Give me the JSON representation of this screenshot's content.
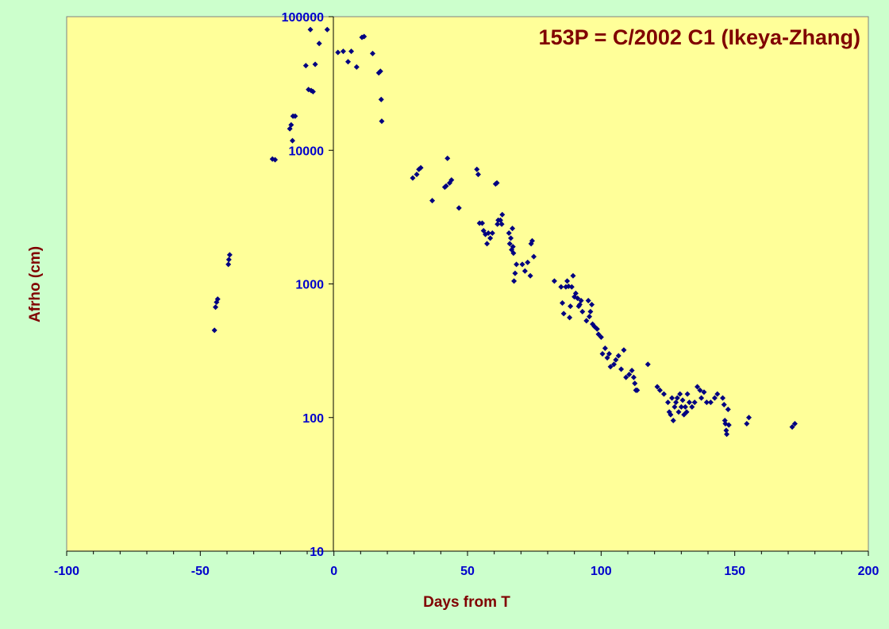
{
  "chart_data": {
    "type": "scatter",
    "title": "153P = C/2002 C1 (Ikeya-Zhang)",
    "xlabel": "Days from T",
    "ylabel": "Afrho (cm)",
    "xlim": [
      -100,
      200
    ],
    "ylim": [
      10,
      100000
    ],
    "yscale": "log",
    "x_ticks": [
      "-100",
      "-50",
      "0",
      "50",
      "100",
      "150",
      "200"
    ],
    "y_ticks": [
      "10",
      "100",
      "1000",
      "10000",
      "100000"
    ],
    "grid": false,
    "legend": "none",
    "colors": {
      "plot_bg": "#ffff99",
      "page_bg": "#ccffcc",
      "marker": "#000080",
      "tick_text": "#0000cc",
      "title_text": "#800000"
    },
    "series": [
      {
        "points": [
          [
            -44.7,
            450
          ],
          [
            -44.3,
            670
          ],
          [
            -43.9,
            730
          ],
          [
            -43.5,
            770
          ],
          [
            -39.5,
            1400
          ],
          [
            -39.3,
            1520
          ],
          [
            -39,
            1650
          ],
          [
            -23,
            8600
          ],
          [
            -22,
            8500
          ],
          [
            -16.5,
            14500
          ],
          [
            -16,
            15500
          ],
          [
            -15.5,
            11800
          ],
          [
            -15.3,
            18000
          ],
          [
            -14.5,
            18000
          ],
          [
            -10.5,
            43000
          ],
          [
            -9.5,
            28500
          ],
          [
            -8.8,
            80000
          ],
          [
            -8.5,
            28000
          ],
          [
            -7.8,
            27500
          ],
          [
            -7,
            44000
          ],
          [
            -5.5,
            63000
          ],
          [
            -2.5,
            80000
          ],
          [
            1.5,
            54000
          ],
          [
            3.5,
            55000
          ],
          [
            5.3,
            46000
          ],
          [
            6.5,
            55000
          ],
          [
            8.5,
            42000
          ],
          [
            10.5,
            70000
          ],
          [
            11.3,
            71000
          ],
          [
            14.5,
            53000
          ],
          [
            16.8,
            38000
          ],
          [
            17.4,
            39000
          ],
          [
            17.7,
            24000
          ],
          [
            17.9,
            16500
          ],
          [
            29.5,
            6200
          ],
          [
            31,
            6600
          ],
          [
            31.8,
            7200
          ],
          [
            32.5,
            7400
          ],
          [
            36.8,
            4200
          ],
          [
            41.5,
            5300
          ],
          [
            42,
            5400
          ],
          [
            42.5,
            8700
          ],
          [
            43.3,
            5700
          ],
          [
            44,
            6000
          ],
          [
            46.8,
            3700
          ],
          [
            53.5,
            7200
          ],
          [
            54,
            6600
          ],
          [
            54.5,
            2850
          ],
          [
            55.5,
            2850
          ],
          [
            56,
            2500
          ],
          [
            56.7,
            2350
          ],
          [
            57.3,
            2000
          ],
          [
            57.8,
            2400
          ],
          [
            58.5,
            2200
          ],
          [
            59.3,
            2400
          ],
          [
            60.5,
            5600
          ],
          [
            61,
            5700
          ],
          [
            61.2,
            2800
          ],
          [
            61.5,
            3000
          ],
          [
            62.3,
            3000
          ],
          [
            62.8,
            2800
          ],
          [
            63,
            3300
          ],
          [
            65.5,
            2400
          ],
          [
            65.8,
            2000
          ],
          [
            66.2,
            2200
          ],
          [
            66.5,
            1800
          ],
          [
            66.8,
            2600
          ],
          [
            67,
            1900
          ],
          [
            67.2,
            1700
          ],
          [
            67.4,
            1050
          ],
          [
            67.8,
            1200
          ],
          [
            68.3,
            1400
          ],
          [
            70.5,
            1400
          ],
          [
            71.5,
            1250
          ],
          [
            72.5,
            1450
          ],
          [
            73.5,
            1150
          ],
          [
            73.8,
            2000
          ],
          [
            74.2,
            2100
          ],
          [
            74.8,
            1600
          ],
          [
            82.5,
            1050
          ],
          [
            85,
            950
          ],
          [
            85.5,
            720
          ],
          [
            86,
            600
          ],
          [
            86.8,
            950
          ],
          [
            87.3,
            1050
          ],
          [
            87.8,
            960
          ],
          [
            88.2,
            560
          ],
          [
            88.5,
            680
          ],
          [
            89,
            950
          ],
          [
            89.5,
            1150
          ],
          [
            90,
            800
          ],
          [
            90.5,
            850
          ],
          [
            91.2,
            780
          ],
          [
            91.6,
            680
          ],
          [
            92,
            700
          ],
          [
            92.5,
            750
          ],
          [
            93,
            620
          ],
          [
            94.5,
            530
          ],
          [
            95.2,
            750
          ],
          [
            95.6,
            570
          ],
          [
            96,
            620
          ],
          [
            96.5,
            700
          ],
          [
            96.8,
            500
          ],
          [
            97.5,
            480
          ],
          [
            98.5,
            460
          ],
          [
            99,
            420
          ],
          [
            100,
            400
          ],
          [
            100.5,
            300
          ],
          [
            101.5,
            330
          ],
          [
            102.3,
            280
          ],
          [
            103,
            300
          ],
          [
            103.5,
            240
          ],
          [
            104.8,
            250
          ],
          [
            105.5,
            270
          ],
          [
            106.5,
            290
          ],
          [
            107.5,
            230
          ],
          [
            108.5,
            320
          ],
          [
            109.3,
            200
          ],
          [
            110.5,
            210
          ],
          [
            111.5,
            225
          ],
          [
            112.2,
            200
          ],
          [
            112.6,
            180
          ],
          [
            113,
            160
          ],
          [
            113.5,
            160
          ],
          [
            117.5,
            250
          ],
          [
            121,
            170
          ],
          [
            122,
            160
          ],
          [
            123.5,
            150
          ],
          [
            125,
            130
          ],
          [
            125.5,
            110
          ],
          [
            126,
            105
          ],
          [
            126.5,
            140
          ],
          [
            127,
            95
          ],
          [
            127.5,
            120
          ],
          [
            128,
            130
          ],
          [
            128.5,
            140
          ],
          [
            129,
            110
          ],
          [
            129.5,
            150
          ],
          [
            130,
            120
          ],
          [
            130.5,
            135
          ],
          [
            131,
            105
          ],
          [
            131.5,
            120
          ],
          [
            132,
            110
          ],
          [
            132.3,
            150
          ],
          [
            133,
            130
          ],
          [
            134,
            120
          ],
          [
            135,
            130
          ],
          [
            136,
            170
          ],
          [
            137,
            160
          ],
          [
            137.5,
            140
          ],
          [
            138.5,
            155
          ],
          [
            139.5,
            130
          ],
          [
            141,
            130
          ],
          [
            142.5,
            140
          ],
          [
            143.5,
            150
          ],
          [
            145.5,
            140
          ],
          [
            146,
            125
          ],
          [
            146.3,
            95
          ],
          [
            146.5,
            90
          ],
          [
            146.8,
            80
          ],
          [
            147,
            75
          ],
          [
            147.5,
            115
          ],
          [
            147.8,
            88
          ],
          [
            154.5,
            90
          ],
          [
            155.3,
            100
          ],
          [
            171.5,
            85
          ],
          [
            172.5,
            90
          ]
        ]
      }
    ]
  }
}
